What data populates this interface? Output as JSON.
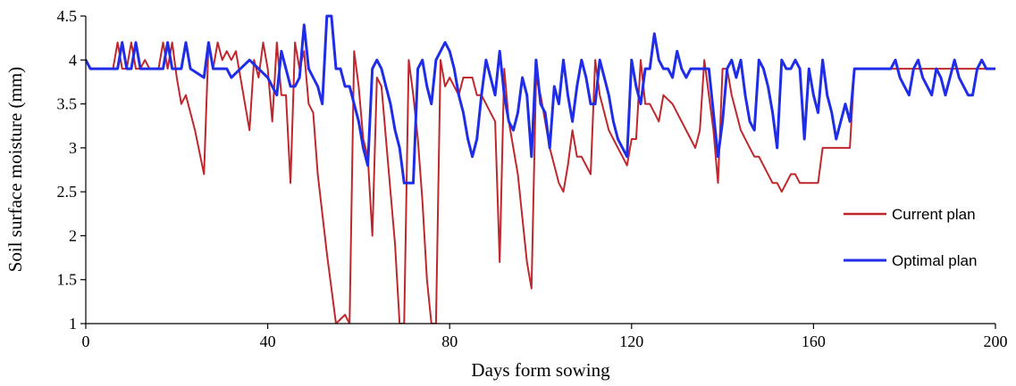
{
  "chart_data": {
    "type": "line",
    "title": "",
    "xlabel": "Days form sowing",
    "ylabel": "Soil surface moisture (mm)",
    "xlim": [
      0,
      200
    ],
    "ylim": [
      1,
      4.5
    ],
    "xticks": [
      0,
      40,
      80,
      120,
      160,
      200
    ],
    "yticks": [
      1,
      1.5,
      2,
      2.5,
      3,
      3.5,
      4,
      4.5
    ],
    "xtick_labels": [
      "0",
      "40",
      "80",
      "120",
      "160",
      "200"
    ],
    "ytick_labels": [
      "1",
      "1.5",
      "2",
      "2.5",
      "3",
      "3.5",
      "4",
      "4.5"
    ],
    "grid": false,
    "legend_position": "right",
    "series": [
      {
        "name": "Current plan",
        "color": "#c0272d",
        "points": [
          [
            0,
            4.0
          ],
          [
            1,
            3.9
          ],
          [
            6,
            3.9
          ],
          [
            7,
            4.2
          ],
          [
            8,
            3.9
          ],
          [
            9,
            3.9
          ],
          [
            10,
            4.2
          ],
          [
            11,
            3.9
          ],
          [
            12,
            3.9
          ],
          [
            13,
            4.0
          ],
          [
            14,
            3.9
          ],
          [
            16,
            3.9
          ],
          [
            17,
            4.2
          ],
          [
            18,
            3.9
          ],
          [
            19,
            4.2
          ],
          [
            20,
            3.8
          ],
          [
            21,
            3.5
          ],
          [
            22,
            3.6
          ],
          [
            23,
            3.4
          ],
          [
            24,
            3.2
          ],
          [
            26,
            2.7
          ],
          [
            27,
            4.2
          ],
          [
            28,
            3.9
          ],
          [
            29,
            4.2
          ],
          [
            30,
            4.0
          ],
          [
            31,
            4.1
          ],
          [
            32,
            4.0
          ],
          [
            33,
            4.1
          ],
          [
            34,
            3.8
          ],
          [
            36,
            3.2
          ],
          [
            37,
            4.0
          ],
          [
            38,
            3.8
          ],
          [
            39,
            4.2
          ],
          [
            40,
            3.9
          ],
          [
            41,
            3.3
          ],
          [
            42,
            4.2
          ],
          [
            43,
            3.6
          ],
          [
            44,
            3.6
          ],
          [
            45,
            2.6
          ],
          [
            46,
            4.2
          ],
          [
            47,
            3.9
          ],
          [
            48,
            4.1
          ],
          [
            49,
            3.5
          ],
          [
            50,
            3.4
          ],
          [
            51,
            2.7
          ],
          [
            53,
            1.8
          ],
          [
            54,
            1.4
          ],
          [
            55,
            1.0
          ],
          [
            56,
            1.05
          ],
          [
            57,
            1.1
          ],
          [
            58,
            1.0
          ],
          [
            59,
            4.1
          ],
          [
            60,
            3.7
          ],
          [
            61,
            3.1
          ],
          [
            62,
            2.9
          ],
          [
            63,
            2.0
          ],
          [
            64,
            3.8
          ],
          [
            65,
            3.7
          ],
          [
            67,
            2.5
          ],
          [
            68,
            1.9
          ],
          [
            69,
            1.0
          ],
          [
            70,
            1.0
          ],
          [
            71,
            4.0
          ],
          [
            72,
            3.6
          ],
          [
            73,
            3.1
          ],
          [
            74,
            2.4
          ],
          [
            75,
            1.5
          ],
          [
            76,
            1.0
          ],
          [
            77,
            1.0
          ],
          [
            78,
            4.0
          ],
          [
            79,
            3.7
          ],
          [
            80,
            3.8
          ],
          [
            81,
            3.7
          ],
          [
            82,
            3.6
          ],
          [
            83,
            3.8
          ],
          [
            84,
            3.8
          ],
          [
            85,
            3.8
          ],
          [
            86,
            3.6
          ],
          [
            87,
            3.6
          ],
          [
            88,
            3.5
          ],
          [
            90,
            3.3
          ],
          [
            91,
            1.7
          ],
          [
            92,
            3.9
          ],
          [
            93,
            3.3
          ],
          [
            95,
            2.7
          ],
          [
            96,
            2.2
          ],
          [
            97,
            1.7
          ],
          [
            98,
            1.4
          ],
          [
            99,
            3.8
          ],
          [
            100,
            3.6
          ],
          [
            101,
            3.3
          ],
          [
            102,
            3.0
          ],
          [
            103,
            2.8
          ],
          [
            104,
            2.6
          ],
          [
            105,
            2.5
          ],
          [
            106,
            2.8
          ],
          [
            107,
            3.2
          ],
          [
            108,
            2.9
          ],
          [
            109,
            2.9
          ],
          [
            110,
            2.8
          ],
          [
            111,
            2.7
          ],
          [
            112,
            4.0
          ],
          [
            113,
            3.6
          ],
          [
            114,
            3.4
          ],
          [
            115,
            3.2
          ],
          [
            116,
            3.1
          ],
          [
            117,
            3.0
          ],
          [
            118,
            2.9
          ],
          [
            119,
            2.8
          ],
          [
            120,
            3.1
          ],
          [
            121,
            3.1
          ],
          [
            122,
            4.0
          ],
          [
            123,
            3.5
          ],
          [
            124,
            3.5
          ],
          [
            125,
            3.4
          ],
          [
            126,
            3.3
          ],
          [
            127,
            3.6
          ],
          [
            129,
            3.5
          ],
          [
            131,
            3.3
          ],
          [
            133,
            3.1
          ],
          [
            134,
            3.0
          ],
          [
            135,
            3.2
          ],
          [
            136,
            4.0
          ],
          [
            137,
            3.6
          ],
          [
            138,
            3.2
          ],
          [
            139,
            2.6
          ],
          [
            140,
            3.9
          ],
          [
            141,
            3.9
          ],
          [
            142,
            3.6
          ],
          [
            143,
            3.4
          ],
          [
            144,
            3.2
          ],
          [
            146,
            3.0
          ],
          [
            147,
            2.9
          ],
          [
            148,
            2.9
          ],
          [
            149,
            2.8
          ],
          [
            150,
            2.7
          ],
          [
            151,
            2.6
          ],
          [
            152,
            2.6
          ],
          [
            153,
            2.5
          ],
          [
            154,
            2.6
          ],
          [
            155,
            2.7
          ],
          [
            156,
            2.7
          ],
          [
            157,
            2.6
          ],
          [
            161,
            2.6
          ],
          [
            162,
            3.0
          ],
          [
            168,
            3.0
          ],
          [
            169,
            3.9
          ],
          [
            200,
            3.9
          ]
        ]
      },
      {
        "name": "Optimal plan",
        "color": "#1f2de8",
        "points": [
          [
            0,
            4.0
          ],
          [
            1,
            3.9
          ],
          [
            7,
            3.9
          ],
          [
            8,
            4.2
          ],
          [
            9,
            3.9
          ],
          [
            10,
            3.9
          ],
          [
            11,
            4.2
          ],
          [
            12,
            3.9
          ],
          [
            17,
            3.9
          ],
          [
            18,
            4.2
          ],
          [
            19,
            3.9
          ],
          [
            21,
            3.9
          ],
          [
            22,
            4.2
          ],
          [
            23,
            3.9
          ],
          [
            26,
            3.8
          ],
          [
            27,
            4.2
          ],
          [
            28,
            3.9
          ],
          [
            31,
            3.9
          ],
          [
            32,
            3.8
          ],
          [
            34,
            3.9
          ],
          [
            36,
            4.0
          ],
          [
            38,
            3.9
          ],
          [
            40,
            3.8
          ],
          [
            42,
            3.6
          ],
          [
            43,
            4.1
          ],
          [
            44,
            3.9
          ],
          [
            45,
            3.7
          ],
          [
            46,
            3.7
          ],
          [
            47,
            3.8
          ],
          [
            48,
            4.4
          ],
          [
            49,
            3.9
          ],
          [
            50,
            3.8
          ],
          [
            51,
            3.7
          ],
          [
            52,
            3.5
          ],
          [
            53,
            4.5
          ],
          [
            54,
            4.5
          ],
          [
            55,
            3.9
          ],
          [
            56,
            3.9
          ],
          [
            57,
            3.7
          ],
          [
            58,
            3.7
          ],
          [
            59,
            3.5
          ],
          [
            60,
            3.3
          ],
          [
            61,
            3.0
          ],
          [
            62,
            2.8
          ],
          [
            63,
            3.9
          ],
          [
            64,
            4.0
          ],
          [
            65,
            3.9
          ],
          [
            66,
            3.7
          ],
          [
            67,
            3.5
          ],
          [
            68,
            3.2
          ],
          [
            69,
            3.0
          ],
          [
            70,
            2.6
          ],
          [
            71,
            2.6
          ],
          [
            72,
            2.6
          ],
          [
            73,
            3.9
          ],
          [
            74,
            4.0
          ],
          [
            75,
            3.7
          ],
          [
            76,
            3.5
          ],
          [
            77,
            4.0
          ],
          [
            78,
            4.1
          ],
          [
            79,
            4.2
          ],
          [
            80,
            4.1
          ],
          [
            81,
            3.9
          ],
          [
            82,
            3.6
          ],
          [
            83,
            3.4
          ],
          [
            84,
            3.1
          ],
          [
            85,
            2.9
          ],
          [
            86,
            3.1
          ],
          [
            87,
            3.6
          ],
          [
            88,
            4.0
          ],
          [
            89,
            3.8
          ],
          [
            90,
            3.6
          ],
          [
            91,
            4.1
          ],
          [
            92,
            3.6
          ],
          [
            93,
            3.3
          ],
          [
            94,
            3.2
          ],
          [
            95,
            3.4
          ],
          [
            96,
            3.8
          ],
          [
            97,
            3.6
          ],
          [
            98,
            2.9
          ],
          [
            99,
            4.0
          ],
          [
            100,
            3.5
          ],
          [
            101,
            3.4
          ],
          [
            102,
            3.0
          ],
          [
            103,
            3.7
          ],
          [
            104,
            3.5
          ],
          [
            105,
            4.0
          ],
          [
            106,
            3.6
          ],
          [
            107,
            3.3
          ],
          [
            108,
            3.7
          ],
          [
            109,
            4.0
          ],
          [
            110,
            3.8
          ],
          [
            111,
            3.5
          ],
          [
            112,
            3.5
          ],
          [
            113,
            4.0
          ],
          [
            114,
            3.8
          ],
          [
            115,
            3.6
          ],
          [
            116,
            3.3
          ],
          [
            117,
            3.1
          ],
          [
            118,
            3.0
          ],
          [
            119,
            2.9
          ],
          [
            120,
            4.0
          ],
          [
            121,
            3.7
          ],
          [
            122,
            3.5
          ],
          [
            123,
            3.9
          ],
          [
            124,
            3.9
          ],
          [
            125,
            4.3
          ],
          [
            126,
            4.0
          ],
          [
            127,
            3.9
          ],
          [
            128,
            3.9
          ],
          [
            129,
            3.8
          ],
          [
            130,
            4.1
          ],
          [
            131,
            3.9
          ],
          [
            132,
            3.8
          ],
          [
            133,
            3.9
          ],
          [
            136,
            3.9
          ],
          [
            137,
            3.9
          ],
          [
            138,
            3.4
          ],
          [
            139,
            2.9
          ],
          [
            140,
            3.3
          ],
          [
            141,
            3.9
          ],
          [
            142,
            4.0
          ],
          [
            143,
            3.8
          ],
          [
            144,
            4.0
          ],
          [
            145,
            3.6
          ],
          [
            146,
            3.3
          ],
          [
            147,
            3.2
          ],
          [
            148,
            4.0
          ],
          [
            149,
            3.9
          ],
          [
            150,
            3.7
          ],
          [
            151,
            3.4
          ],
          [
            152,
            3.0
          ],
          [
            153,
            4.0
          ],
          [
            154,
            3.9
          ],
          [
            155,
            3.9
          ],
          [
            156,
            4.0
          ],
          [
            157,
            3.9
          ],
          [
            158,
            3.1
          ],
          [
            159,
            3.9
          ],
          [
            160,
            3.6
          ],
          [
            161,
            3.4
          ],
          [
            162,
            4.0
          ],
          [
            163,
            3.6
          ],
          [
            164,
            3.4
          ],
          [
            165,
            3.1
          ],
          [
            166,
            3.3
          ],
          [
            167,
            3.5
          ],
          [
            168,
            3.3
          ],
          [
            169,
            3.9
          ],
          [
            177,
            3.9
          ],
          [
            178,
            4.0
          ],
          [
            179,
            3.8
          ],
          [
            180,
            3.7
          ],
          [
            181,
            3.6
          ],
          [
            182,
            3.9
          ],
          [
            183,
            4.0
          ],
          [
            184,
            3.8
          ],
          [
            185,
            3.7
          ],
          [
            186,
            3.6
          ],
          [
            187,
            3.9
          ],
          [
            188,
            3.8
          ],
          [
            189,
            3.6
          ],
          [
            190,
            3.8
          ],
          [
            191,
            4.0
          ],
          [
            192,
            3.8
          ],
          [
            193,
            3.7
          ],
          [
            194,
            3.6
          ],
          [
            195,
            3.6
          ],
          [
            196,
            3.9
          ],
          [
            197,
            4.0
          ],
          [
            198,
            3.9
          ],
          [
            200,
            3.9
          ]
        ]
      }
    ]
  }
}
